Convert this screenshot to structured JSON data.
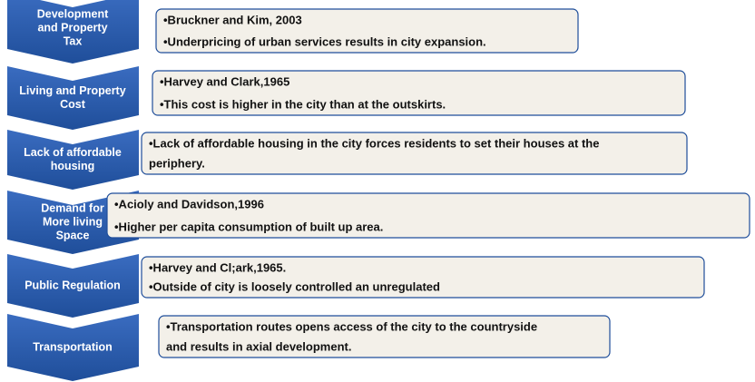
{
  "rows": [
    {
      "label_lines": [
        "Development",
        "and Property",
        "Tax"
      ],
      "text_lines": [
        "•Bruckner and Kim, 2003",
        "•Underpricing of urban services results in city expansion."
      ]
    },
    {
      "label_lines": [
        "Living and Property",
        "Cost"
      ],
      "text_lines": [
        "•Harvey and Clark,1965",
        "•This cost is higher in the city than at the outskirts."
      ]
    },
    {
      "label_lines": [
        "Lack of affordable",
        "housing"
      ],
      "text_lines": [
        "•Lack of affordable housing in the city forces residents to set their houses at the",
        "periphery."
      ]
    },
    {
      "label_lines": [
        "Demand for",
        "More living",
        "Space"
      ],
      "text_lines": [
        "•Acioly and Davidson,1996",
        "•Higher per capita consumption of built up area."
      ]
    },
    {
      "label_lines": [
        "Public Regulation"
      ],
      "text_lines": [
        "•Harvey and Cl;ark,1965.",
        "•Outside of city is loosely controlled an unregulated"
      ]
    },
    {
      "label_lines": [
        "Transportation"
      ],
      "text_lines": [
        "•Transportation routes opens access of the city to the countryside",
        " and results in axial development."
      ]
    }
  ]
}
